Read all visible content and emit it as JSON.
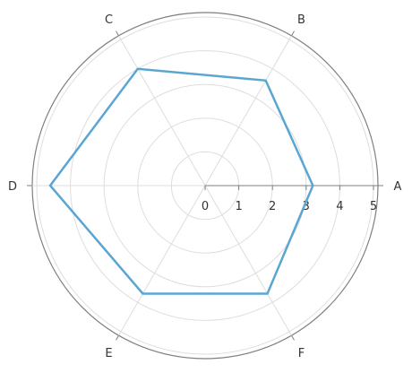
{
  "chart_data": {
    "type": "radar",
    "categories": [
      "A",
      "B",
      "C",
      "D",
      "E",
      "F"
    ],
    "series": [
      {
        "values": [
          3.2,
          3.6,
          4.0,
          4.6,
          3.7,
          3.7
        ],
        "color": "#5aa6d2"
      }
    ],
    "radial_ticks": [
      "0",
      "1",
      "2",
      "3",
      "4",
      "5"
    ],
    "rlim": [
      0,
      5
    ],
    "grid": true,
    "colors": {
      "series": "#5aa6d2",
      "outer_ring": "#7f7f7f",
      "grid": "#dddddd",
      "radial_axis": "#7f7f7f",
      "text": "#333333"
    }
  }
}
